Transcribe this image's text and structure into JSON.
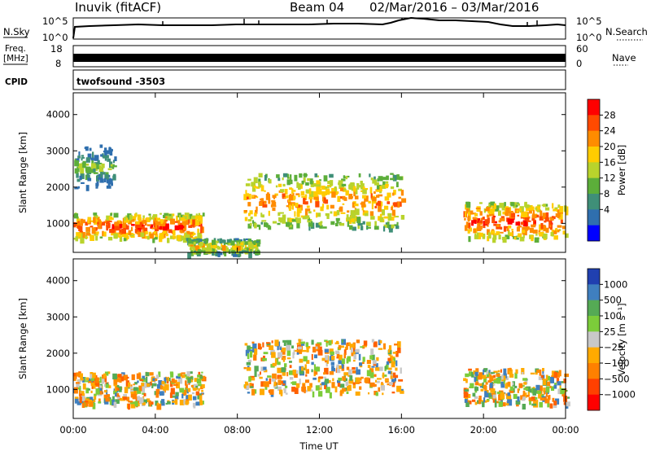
{
  "header": {
    "title": "Inuvik (fitACF)",
    "beam": "Beam 04",
    "date_range": "02/Mar/2016 – 03/Mar/2016"
  },
  "status_panels": {
    "nsky_label": "N.Sky",
    "nsky_ticks": [
      "10^5",
      "10^0"
    ],
    "nsearch_label": "N.Search",
    "nsearch_ticks": [
      "10^5",
      "10^0"
    ],
    "freq_label": "Freq.",
    "freq_unit": "[MHz]",
    "freq_ticks": [
      "18",
      "8"
    ],
    "nave_label": "Nave",
    "nave_ticks": [
      "60",
      "0"
    ],
    "cpid_label": "CPID",
    "cpid_text": "twofsound -3503"
  },
  "chart_data": [
    {
      "type": "heatmap",
      "name_key": "power",
      "ylabel": "Slant Range [km]",
      "xlabel": "",
      "yticks": [
        1000,
        2000,
        3000,
        4000
      ],
      "ylim": [
        200,
        4600
      ],
      "xlim_hours": [
        0,
        24
      ],
      "colorbar": {
        "label": "Power [dB]",
        "ticks": [
          "28",
          "24",
          "20",
          "16",
          "12",
          "8",
          "4"
        ],
        "colors": [
          "#ff0000",
          "#ff4a00",
          "#ff8c00",
          "#ffcc00",
          "#b9d32c",
          "#5cae3a",
          "#3f8f78",
          "#2f6fae",
          "#0000ff"
        ]
      },
      "echo_bands": [
        {
          "range_km": [
            600,
            1300
          ],
          "hours": [
            0,
            6.3
          ],
          "value": "high"
        },
        {
          "range_km": [
            900,
            2400
          ],
          "hours": [
            8.3,
            16
          ],
          "value": "mid-high"
        },
        {
          "range_km": [
            600,
            1600
          ],
          "hours": [
            19,
            24
          ],
          "value": "high"
        },
        {
          "range_km": [
            200,
            600
          ],
          "hours": [
            5.5,
            9
          ],
          "value": "mid"
        },
        {
          "range_km": [
            2000,
            3200
          ],
          "hours": [
            0,
            2
          ],
          "value": "low"
        }
      ]
    },
    {
      "type": "heatmap",
      "name_key": "velocity",
      "ylabel": "Slant Range [km]",
      "xlabel": "Time UT",
      "xticks": [
        "00:00",
        "04:00",
        "08:00",
        "12:00",
        "16:00",
        "20:00",
        "00:00"
      ],
      "yticks": [
        1000,
        2000,
        3000,
        4000
      ],
      "ylim": [
        200,
        4600
      ],
      "xlim_hours": [
        0,
        24
      ],
      "colorbar": {
        "label": "Velocity [m s⁻¹]",
        "ticks": [
          "1000",
          "500",
          "100",
          "25",
          "−25",
          "−100",
          "−500",
          "−1000"
        ],
        "colors": [
          "#2040b0",
          "#3f7fbf",
          "#55aa55",
          "#7ccc3a",
          "#c8c8c8",
          "#ffaa00",
          "#ff8000",
          "#ff4000",
          "#ff0000"
        ]
      },
      "echo_bands": [
        {
          "range_km": [
            600,
            1500
          ],
          "hours": [
            0,
            6.3
          ],
          "value": "toward-moderate"
        },
        {
          "range_km": [
            900,
            2400
          ],
          "hours": [
            8.3,
            16
          ],
          "value": "mixed"
        },
        {
          "range_km": [
            600,
            1600
          ],
          "hours": [
            19,
            24
          ],
          "value": "mixed"
        }
      ]
    }
  ]
}
